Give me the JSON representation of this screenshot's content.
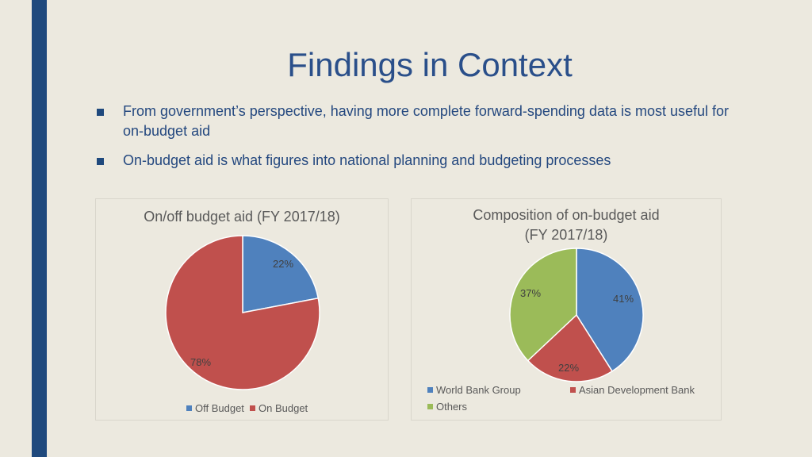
{
  "slide": {
    "title": "Findings in Context",
    "bullets": [
      "From government’s perspective, having more complete forward-spending data is most useful for on-budget aid",
      "On-budget aid is what figures into national planning and budgeting processes"
    ],
    "accent_color": "#1f497d"
  },
  "chart_data": [
    {
      "type": "pie",
      "title": "On/off budget aid (FY 2017/18)",
      "categories": [
        "Off Budget",
        "On Budget"
      ],
      "values": [
        22,
        78
      ],
      "labels": [
        "22%",
        "78%"
      ],
      "colors": [
        "#4f81bd",
        "#c0504d"
      ],
      "legend": "bottom"
    },
    {
      "type": "pie",
      "title_lines": [
        "Composition of on-budget aid",
        "(FY 2017/18)"
      ],
      "categories": [
        "World Bank Group",
        "Asian Development Bank",
        "Others"
      ],
      "values": [
        41,
        22,
        37
      ],
      "labels": [
        "41%",
        "22%",
        "37%"
      ],
      "colors": [
        "#4f81bd",
        "#c0504d",
        "#9bbb59"
      ],
      "legend": "bottom"
    }
  ]
}
